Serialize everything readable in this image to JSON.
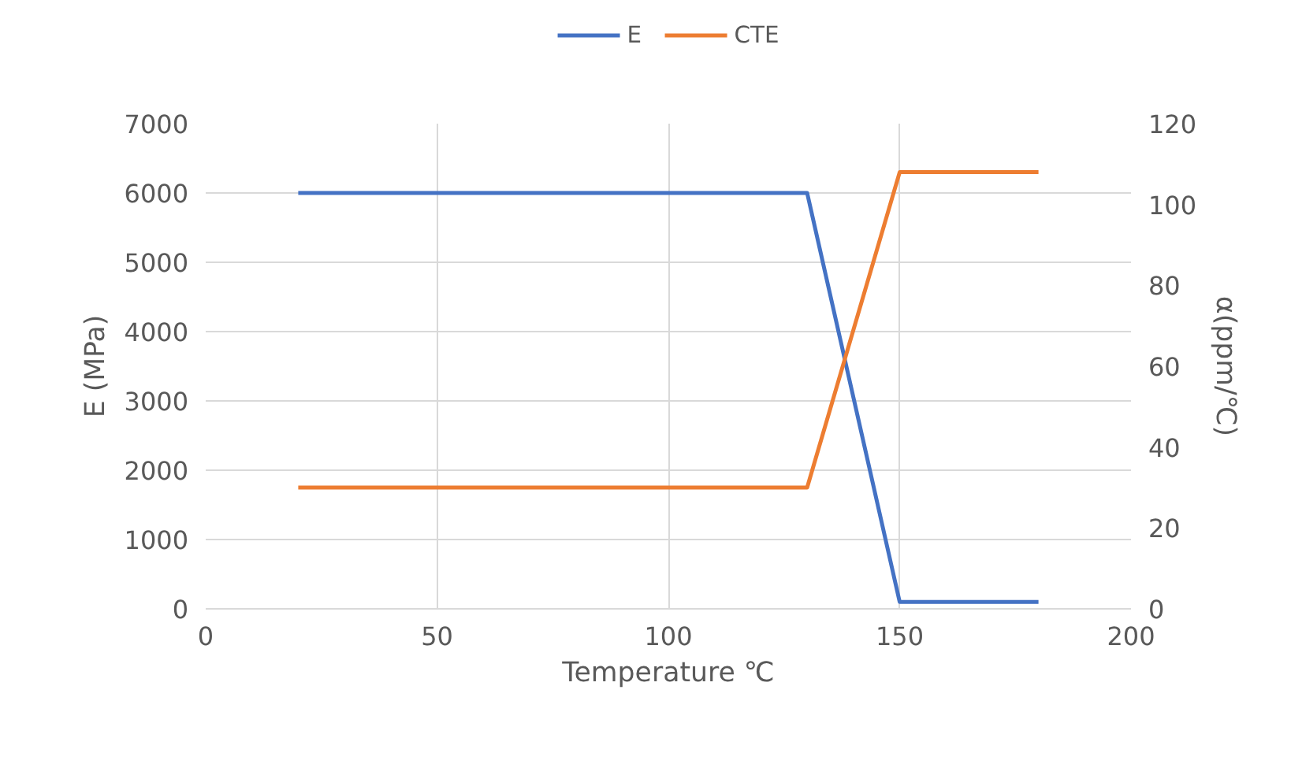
{
  "chart_data": {
    "type": "line",
    "xlabel": "Temperature ℃",
    "ylabel": "E (MPa)",
    "y2label": "α(ppm/℃)",
    "xlim": [
      0,
      200
    ],
    "xticks": [
      0,
      50,
      100,
      150,
      200
    ],
    "ylim": [
      0,
      7000
    ],
    "yticks": [
      0,
      1000,
      2000,
      3000,
      4000,
      5000,
      6000,
      7000
    ],
    "y2lim": [
      0,
      120
    ],
    "y2ticks": [
      0,
      20,
      40,
      60,
      80,
      100,
      120
    ],
    "grid": true,
    "legend": "top",
    "marker": "none",
    "line_style": "solid",
    "series": [
      {
        "name": "E",
        "color": "#4472c4",
        "x": [
          20,
          130,
          150,
          180
        ],
        "values": [
          6000,
          6000,
          100,
          100
        ]
      },
      {
        "name": "CTE",
        "color": "#ed7d31",
        "axis": "y2",
        "x": [
          20,
          130,
          150,
          180
        ],
        "values": [
          30,
          30,
          108,
          108
        ]
      }
    ]
  }
}
